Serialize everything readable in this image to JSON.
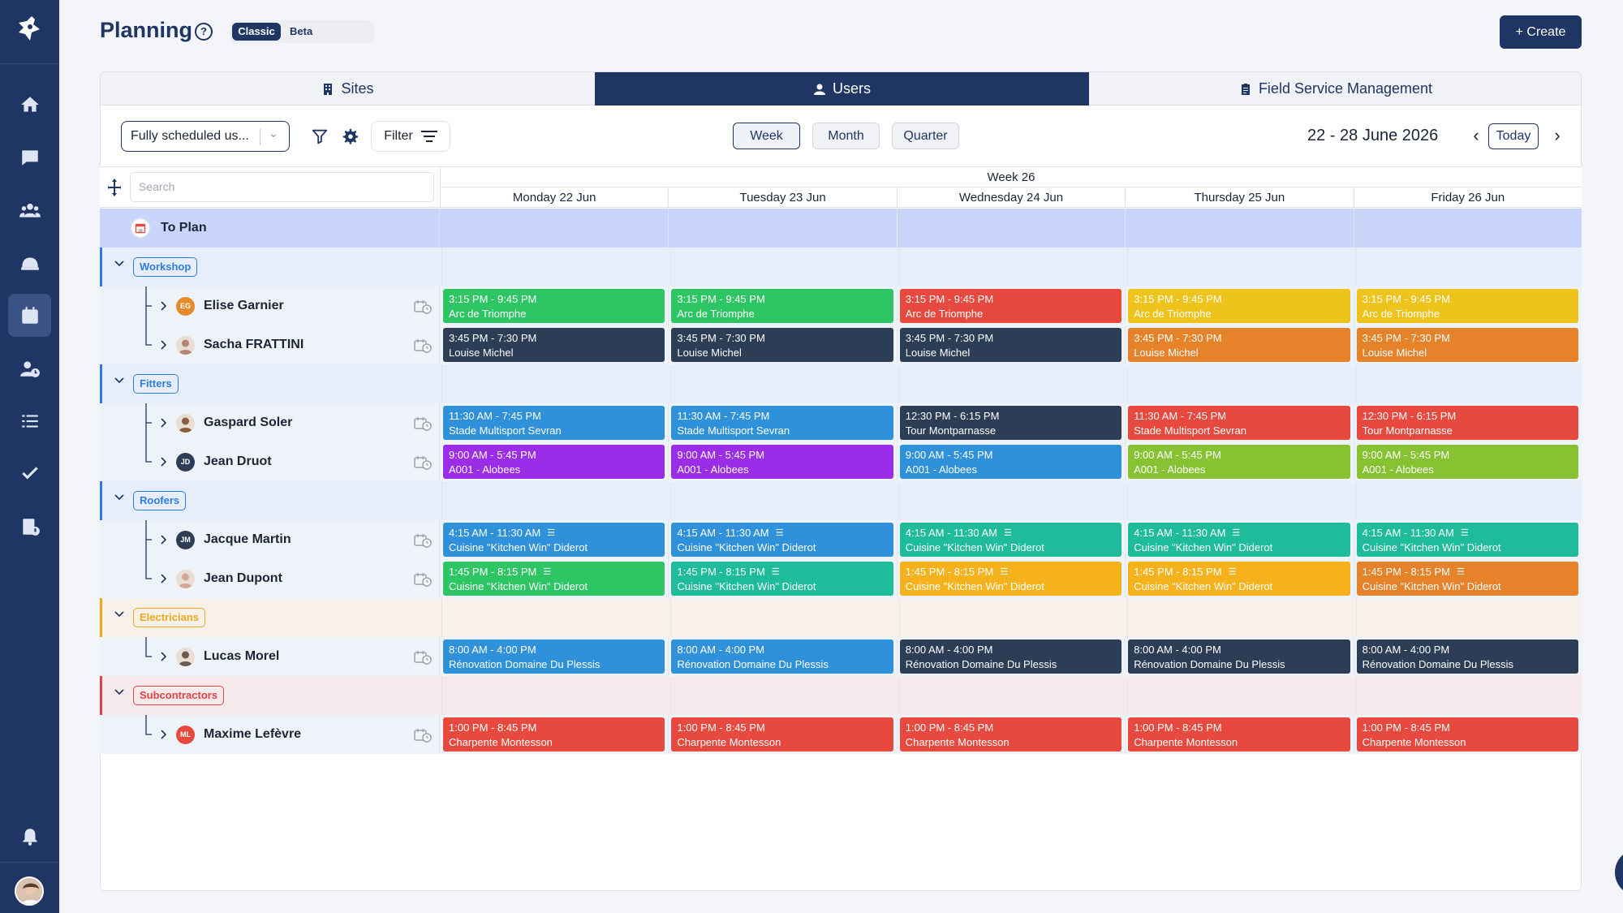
{
  "page": {
    "title": "Planning",
    "help_icon": "question-circle-icon",
    "view_toggle": {
      "active": "Classic",
      "inactive": "Beta"
    },
    "create_label": "+ Create"
  },
  "sidebar": {
    "items": [
      {
        "name": "home-icon"
      },
      {
        "name": "chat-icon"
      },
      {
        "name": "users-icon"
      },
      {
        "name": "helmet-icon"
      },
      {
        "name": "calendar-icon",
        "active": true
      },
      {
        "name": "user-clock-icon"
      },
      {
        "name": "list-icon"
      },
      {
        "name": "check-icon"
      },
      {
        "name": "report-icon"
      },
      {
        "name": "bell-icon"
      }
    ]
  },
  "tabs": [
    {
      "label": "Sites",
      "icon": "building-icon"
    },
    {
      "label": "Users",
      "icon": "user-icon",
      "active": true
    },
    {
      "label": "Field Service Management",
      "icon": "clipboard-icon"
    }
  ],
  "toolbar": {
    "user_filter_value": "Fully scheduled us...",
    "filter_label": "Filter",
    "periods": [
      "Week",
      "Month",
      "Quarter"
    ],
    "active_period": "Week",
    "date_range": "22 - 28 June 2026",
    "today_label": "Today"
  },
  "grid": {
    "search_placeholder": "Search",
    "week_label": "Week 26",
    "days": [
      "Monday 22 Jun",
      "Tuesday 23 Jun",
      "Wednesday 24 Jun",
      "Thursday 25 Jun",
      "Friday 26 Jun"
    ],
    "to_plan_label": "To Plan",
    "groups": [
      {
        "label": "Workshop",
        "color": "#2d7de0",
        "bg": "#e6eefc"
      },
      {
        "label": "Fitters",
        "color": "#2d7de0",
        "bg": "#e6eefc"
      },
      {
        "label": "Roofers",
        "color": "#2d7de0",
        "bg": "#e6eefc"
      },
      {
        "label": "Electricians",
        "color": "#f0a81a",
        "bg": "#f7f1ea"
      },
      {
        "label": "Subcontractors",
        "color": "#e04343",
        "bg": "#f6e9ec"
      }
    ],
    "users": [
      {
        "name": "Elise Garnier",
        "initials": "EG",
        "avatar_color": "#e58a2c",
        "group": 0,
        "events": [
          {
            "time": "3:15 PM - 9:45 PM",
            "place": "Arc de Triomphe",
            "color": "#2ec565"
          },
          {
            "time": "3:15 PM - 9:45 PM",
            "place": "Arc de Triomphe",
            "color": "#2ec565"
          },
          {
            "time": "3:15 PM - 9:45 PM",
            "place": "Arc de Triomphe",
            "color": "#e8493f"
          },
          {
            "time": "3:15 PM - 9:45 PM",
            "place": "Arc de Triomphe",
            "color": "#eec31c"
          },
          {
            "time": "3:15 PM - 9:45 PM",
            "place": "Arc de Triomphe",
            "color": "#eec31c"
          }
        ]
      },
      {
        "name": "Sacha FRATTINI",
        "initials": "",
        "avatar_color": "#b38774",
        "group": 0,
        "events": [
          {
            "time": "3:45 PM - 7:30 PM",
            "place": "Louise Michel",
            "color": "#2c3e56"
          },
          {
            "time": "3:45 PM - 7:30 PM",
            "place": "Louise Michel",
            "color": "#2c3e56"
          },
          {
            "time": "3:45 PM - 7:30 PM",
            "place": "Louise Michel",
            "color": "#2c3e56"
          },
          {
            "time": "3:45 PM - 7:30 PM",
            "place": "Louise Michel",
            "color": "#e5822a"
          },
          {
            "time": "3:45 PM - 7:30 PM",
            "place": "Louise Michel",
            "color": "#e5822a"
          }
        ]
      },
      {
        "name": "Gaspard Soler",
        "initials": "",
        "avatar_color": "#8a5b3f",
        "group": 1,
        "events": [
          {
            "time": "11:30 AM - 7:45 PM",
            "place": "Stade Multisport Sevran",
            "color": "#3091db"
          },
          {
            "time": "11:30 AM - 7:45 PM",
            "place": "Stade Multisport Sevran",
            "color": "#3091db"
          },
          {
            "time": "12:30 PM - 6:15 PM",
            "place": "Tour Montparnasse",
            "color": "#2c3e56"
          },
          {
            "time": "11:30 AM - 7:45 PM",
            "place": "Stade Multisport Sevran",
            "color": "#e8493f"
          },
          {
            "time": "12:30 PM - 6:15 PM",
            "place": "Tour Montparnasse",
            "color": "#e8493f"
          }
        ]
      },
      {
        "name": "Jean Druot",
        "initials": "JD",
        "avatar_color": "#2c3e56",
        "group": 1,
        "events": [
          {
            "time": "9:00 AM - 5:45 PM",
            "place": "A001 - Alobees",
            "color": "#9b2ce8"
          },
          {
            "time": "9:00 AM - 5:45 PM",
            "place": "A001 - Alobees",
            "color": "#9b2ce8"
          },
          {
            "time": "9:00 AM - 5:45 PM",
            "place": "A001 - Alobees",
            "color": "#3091db"
          },
          {
            "time": "9:00 AM - 5:45 PM",
            "place": "A001 - Alobees",
            "color": "#86c232"
          },
          {
            "time": "9:00 AM - 5:45 PM",
            "place": "A001 - Alobees",
            "color": "#86c232"
          }
        ]
      },
      {
        "name": "Jacque Martin",
        "initials": "JM",
        "avatar_color": "#2c3e56",
        "group": 2,
        "events": [
          {
            "time": "4:15 AM - 11:30 AM",
            "place": "Cuisine \"Kitchen Win\" Diderot",
            "color": "#3091db",
            "icon": true
          },
          {
            "time": "4:15 AM - 11:30 AM",
            "place": "Cuisine \"Kitchen Win\" Diderot",
            "color": "#3091db",
            "icon": true
          },
          {
            "time": "4:15 AM - 11:30 AM",
            "place": "Cuisine \"Kitchen Win\" Diderot",
            "color": "#1ebc9a",
            "icon": true
          },
          {
            "time": "4:15 AM - 11:30 AM",
            "place": "Cuisine \"Kitchen Win\" Diderot",
            "color": "#1ebc9a",
            "icon": true
          },
          {
            "time": "4:15 AM - 11:30 AM",
            "place": "Cuisine \"Kitchen Win\" Diderot",
            "color": "#1ebc9a",
            "icon": true
          }
        ]
      },
      {
        "name": "Jean Dupont",
        "initials": "",
        "avatar_color": "#d1a796",
        "group": 2,
        "events": [
          {
            "time": "1:45 PM - 8:15 PM",
            "place": "Cuisine \"Kitchen Win\" Diderot",
            "color": "#2ec565",
            "icon": true
          },
          {
            "time": "1:45 PM - 8:15 PM",
            "place": "Cuisine \"Kitchen Win\" Diderot",
            "color": "#1ebc9a",
            "icon": true
          },
          {
            "time": "1:45 PM - 8:15 PM",
            "place": "Cuisine \"Kitchen Win\" Diderot",
            "color": "#f5b21c",
            "icon": true
          },
          {
            "time": "1:45 PM - 8:15 PM",
            "place": "Cuisine \"Kitchen Win\" Diderot",
            "color": "#f5b21c",
            "icon": true
          },
          {
            "time": "1:45 PM - 8:15 PM",
            "place": "Cuisine \"Kitchen Win\" Diderot",
            "color": "#e5822a",
            "icon": true
          }
        ]
      },
      {
        "name": "Lucas Morel",
        "initials": "",
        "avatar_color": "#6d5a4f",
        "group": 3,
        "events": [
          {
            "time": "8:00 AM - 4:00 PM",
            "place": "Rénovation Domaine Du Plessis",
            "color": "#3091db"
          },
          {
            "time": "8:00 AM - 4:00 PM",
            "place": "Rénovation Domaine Du Plessis",
            "color": "#3091db"
          },
          {
            "time": "8:00 AM - 4:00 PM",
            "place": "Rénovation Domaine Du Plessis",
            "color": "#2c3e56"
          },
          {
            "time": "8:00 AM - 4:00 PM",
            "place": "Rénovation Domaine Du Plessis",
            "color": "#2c3e56"
          },
          {
            "time": "8:00 AM - 4:00 PM",
            "place": "Rénovation Domaine Du Plessis",
            "color": "#2c3e56"
          }
        ]
      },
      {
        "name": "Maxime Lefèvre",
        "initials": "ML",
        "avatar_color": "#e8493f",
        "group": 4,
        "events": [
          {
            "time": "1:00 PM - 8:45 PM",
            "place": "Charpente Montesson",
            "color": "#e8493f"
          },
          {
            "time": "1:00 PM - 8:45 PM",
            "place": "Charpente Montesson",
            "color": "#e8493f"
          },
          {
            "time": "1:00 PM - 8:45 PM",
            "place": "Charpente Montesson",
            "color": "#e8493f"
          },
          {
            "time": "1:00 PM - 8:45 PM",
            "place": "Charpente Montesson",
            "color": "#e8493f"
          },
          {
            "time": "1:00 PM - 8:45 PM",
            "place": "Charpente Montesson",
            "color": "#e8493f"
          }
        ]
      }
    ]
  },
  "chat_icon": "chat-bubble-icon"
}
